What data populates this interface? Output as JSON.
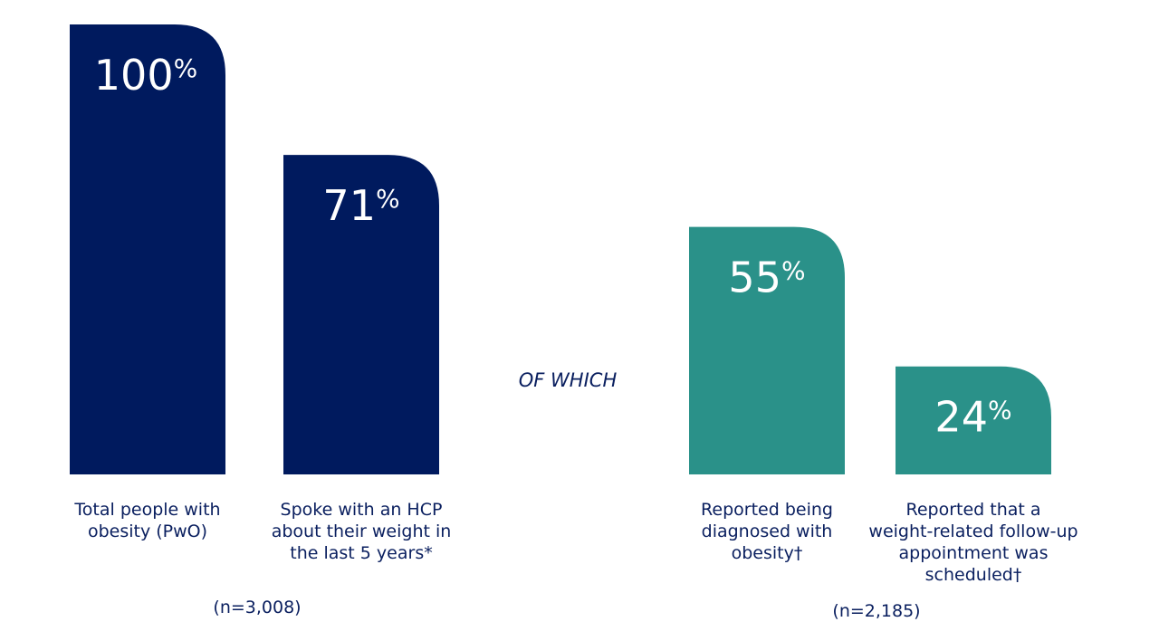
{
  "chart_data": {
    "type": "bar",
    "ylim": [
      0,
      100
    ],
    "title": "",
    "xlabel": "",
    "ylabel": "",
    "value_suffix": "%",
    "categories": [
      {
        "label_lines": [
          "Total people with",
          "obesity (PwO)"
        ],
        "value": 100,
        "group": 0
      },
      {
        "label_lines": [
          "Spoke with an HCP",
          "about their weight in",
          "the last 5 years*"
        ],
        "value": 71,
        "group": 0
      },
      {
        "label_lines": [
          "Reported being",
          "diagnosed with",
          "obesity†"
        ],
        "value": 55,
        "group": 1
      },
      {
        "label_lines": [
          "Reported that a",
          "weight-related follow-up",
          "appointment was",
          "scheduled†"
        ],
        "value": 24,
        "group": 1
      }
    ],
    "groups": [
      {
        "sample_label": "(n=3,008)",
        "color": "#001a5e"
      },
      {
        "sample_label": "(n=2,185)",
        "color": "#2a9189"
      }
    ],
    "connector_label": "OF WHICH"
  }
}
